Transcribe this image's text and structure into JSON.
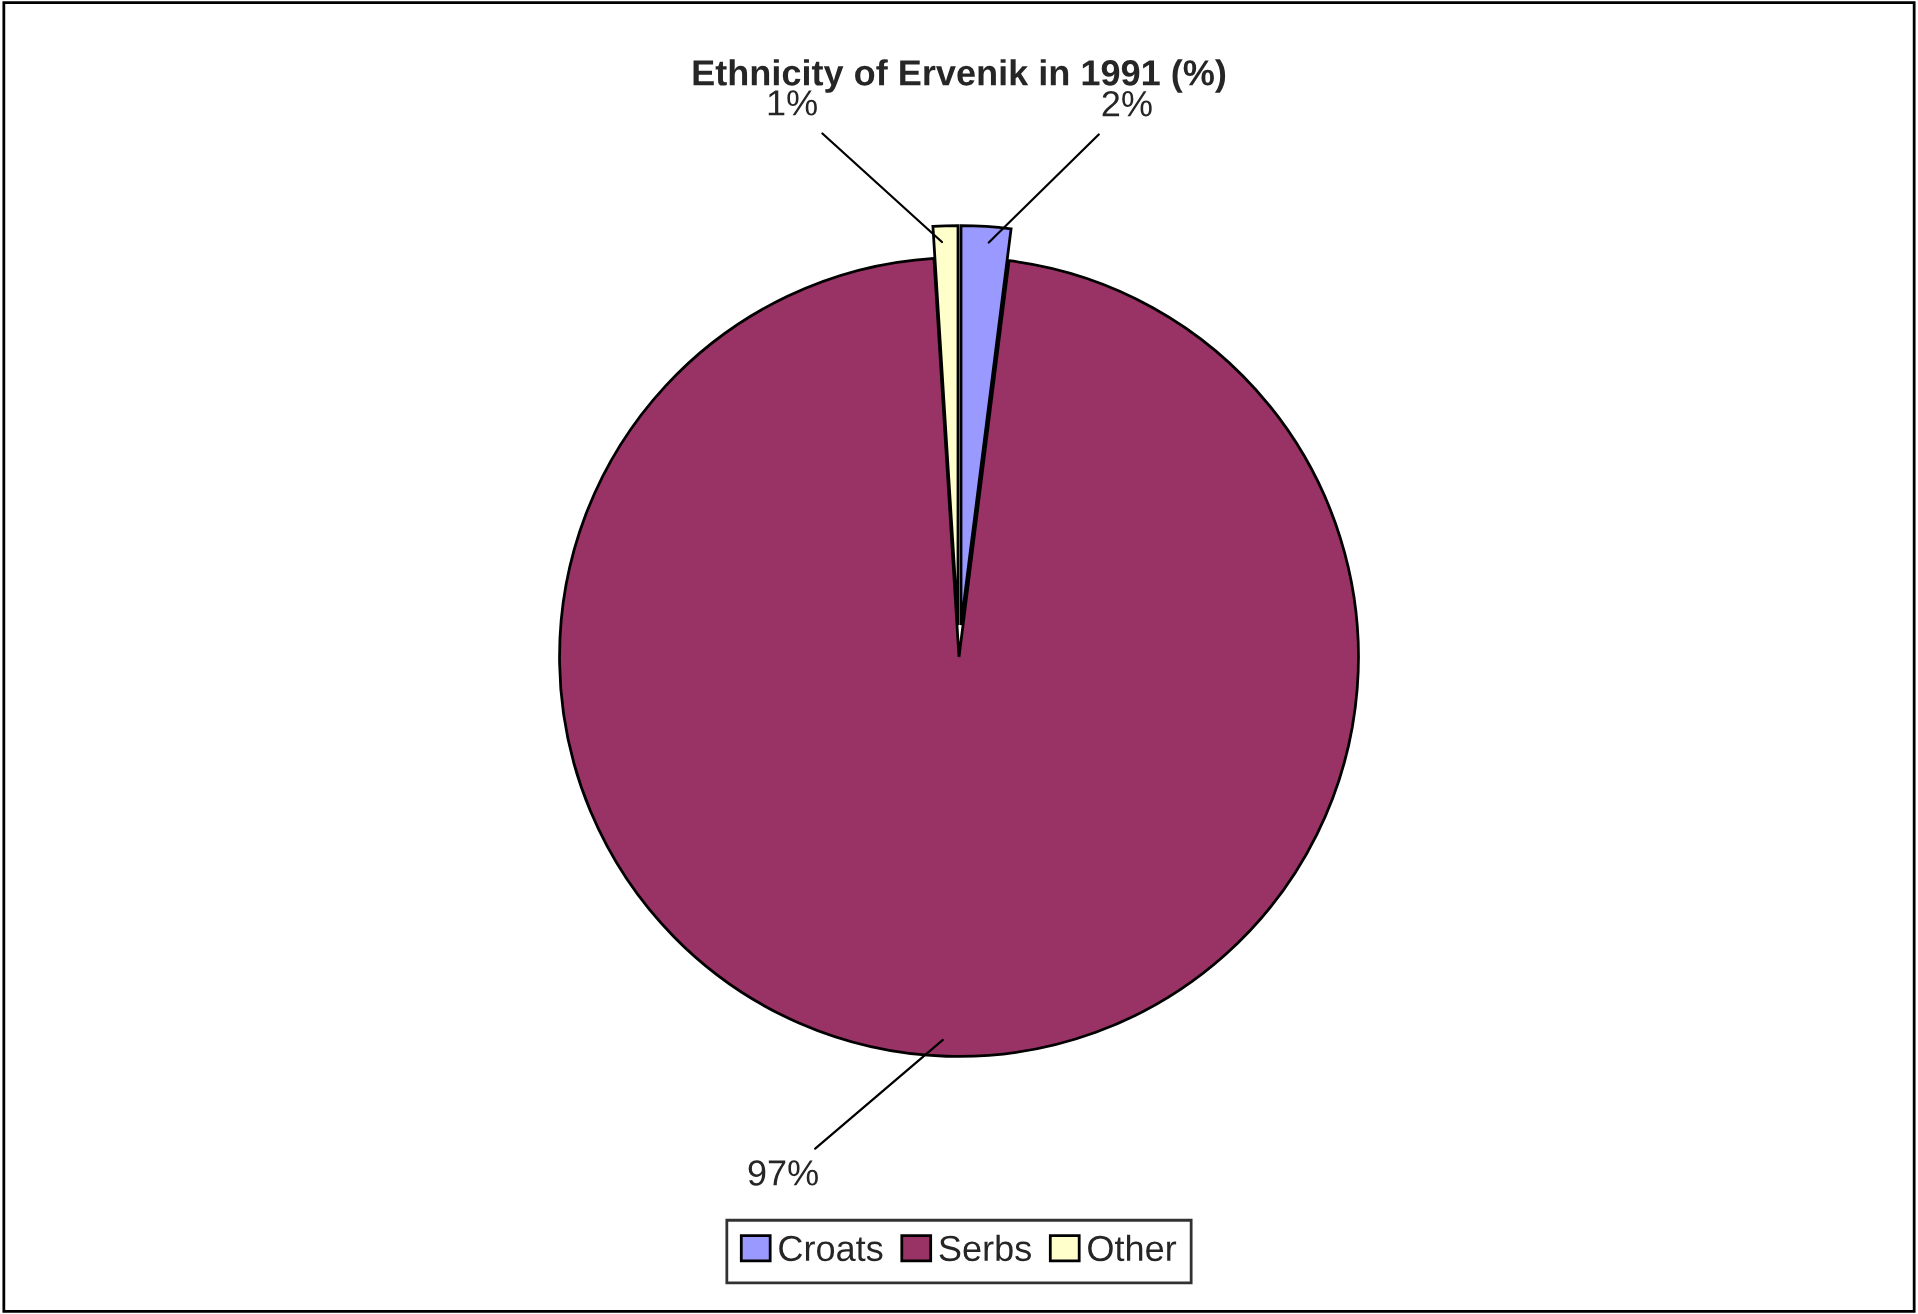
{
  "chart_data": {
    "type": "pie",
    "title": "Ethnicity of Ervenik in 1991 (%)",
    "categories": [
      "Croats",
      "Serbs",
      "Other"
    ],
    "values": [
      2,
      97,
      1
    ],
    "colors": [
      "#9999ff",
      "#993366",
      "#ffffcc"
    ],
    "value_labels": [
      "2%",
      "97%",
      "1%"
    ],
    "legend": "bottom"
  }
}
